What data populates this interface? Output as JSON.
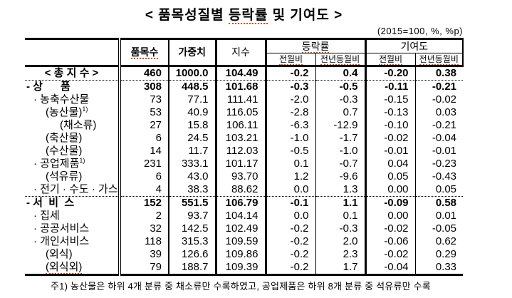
{
  "title_parts": {
    "pre": "< 품목성질별 ",
    "underlined": "등락률",
    "post": " 및 기여도 >"
  },
  "unit_note": "(2015=100, %, %p)",
  "colors": {
    "background": "#ffffff",
    "text": "#000000",
    "border": "#000000",
    "spellcheck_underline": "#c85119"
  },
  "table": {
    "col_headers": {
      "corner": "",
      "items": "품목수",
      "weight": "가중치",
      "index": "지수",
      "change_group": "등락률",
      "contrib_group": "기여도",
      "mom": "전월비",
      "yoy": "전년동월비"
    },
    "rows": [
      {
        "label": "< 총 지 수 >",
        "center": true,
        "bold": true,
        "sep_after": true,
        "indent": 0,
        "items": "460",
        "weight": "1000.0",
        "index": "104.49",
        "change_mom": "-0.2",
        "change_yoy": "0.4",
        "contrib_mom": "-0.20",
        "contrib_yoy": "0.38"
      },
      {
        "label": "- 상      품",
        "bold": true,
        "indent": 0,
        "items": "308",
        "weight": "448.5",
        "index": "101.68",
        "change_mom": "-0.3",
        "change_yoy": "-0.5",
        "contrib_mom": "-0.11",
        "contrib_yoy": "-0.21"
      },
      {
        "label": "· 농축수산물",
        "indent": 1,
        "items": "73",
        "weight": "77.1",
        "index": "111.41",
        "change_mom": "-2.0",
        "change_yoy": "-0.3",
        "contrib_mom": "-0.15",
        "contrib_yoy": "-0.02"
      },
      {
        "label": "(농산물)",
        "label_sup": "1)",
        "indent": 2,
        "items": "53",
        "weight": "40.9",
        "index": "116.05",
        "change_mom": "-2.8",
        "change_yoy": "0.7",
        "contrib_mom": "-0.13",
        "contrib_yoy": "0.03"
      },
      {
        "label": "(채소류)",
        "indent": 3,
        "items": "27",
        "weight": "15.8",
        "index": "106.11",
        "change_mom": "-6.3",
        "change_yoy": "-12.9",
        "contrib_mom": "-0.10",
        "contrib_yoy": "-0.21"
      },
      {
        "label": "(축산물)",
        "indent": 2,
        "items": "6",
        "weight": "24.5",
        "index": "103.21",
        "change_mom": "-1.0",
        "change_yoy": "-1.7",
        "contrib_mom": "-0.02",
        "contrib_yoy": "-0.04"
      },
      {
        "label": "(수산물)",
        "indent": 2,
        "items": "14",
        "weight": "11.7",
        "index": "112.03",
        "change_mom": "-0.5",
        "change_yoy": "-1.0",
        "contrib_mom": "-0.01",
        "contrib_yoy": "-0.01"
      },
      {
        "label": "· 공업제품",
        "label_sup": "1)",
        "indent": 1,
        "items": "231",
        "weight": "333.1",
        "index": "101.17",
        "change_mom": "0.1",
        "change_yoy": "-0.7",
        "contrib_mom": "0.04",
        "contrib_yoy": "-0.23"
      },
      {
        "label": "(석유류)",
        "indent": 2,
        "items": "6",
        "weight": "43.0",
        "index": "93.70",
        "change_mom": "1.2",
        "change_yoy": "-9.6",
        "contrib_mom": "0.05",
        "contrib_yoy": "-0.43"
      },
      {
        "label": "· 전기 · 수도 · 가스",
        "indent": 1,
        "sep_after": true,
        "items": "4",
        "weight": "38.3",
        "index": "88.62",
        "change_mom": "0.0",
        "change_yoy": "1.3",
        "contrib_mom": "0.00",
        "contrib_yoy": "0.05"
      },
      {
        "label": "- 서  비  스",
        "bold": true,
        "indent": 0,
        "items": "152",
        "weight": "551.5",
        "index": "106.79",
        "change_mom": "-0.1",
        "change_yoy": "1.1",
        "contrib_mom": "-0.09",
        "contrib_yoy": "0.58"
      },
      {
        "label": "· 집세",
        "indent": 1,
        "items": "2",
        "weight": "93.7",
        "index": "104.14",
        "change_mom": "0.0",
        "change_yoy": "0.1",
        "contrib_mom": "0.00",
        "contrib_yoy": "0.01"
      },
      {
        "label": "· 공공서비스",
        "indent": 1,
        "items": "32",
        "weight": "142.5",
        "index": "102.49",
        "change_mom": "-0.2",
        "change_yoy": "-0.3",
        "contrib_mom": "-0.02",
        "contrib_yoy": "-0.05"
      },
      {
        "label": "· 개인서비스",
        "indent": 1,
        "items": "118",
        "weight": "315.3",
        "index": "109.59",
        "change_mom": "-0.2",
        "change_yoy": "2.0",
        "contrib_mom": "-0.06",
        "contrib_yoy": "0.62"
      },
      {
        "label": "(외식)",
        "indent": 2,
        "items": "39",
        "weight": "126.6",
        "index": "109.86",
        "change_mom": "-0.2",
        "change_yoy": "2.3",
        "contrib_mom": "-0.02",
        "contrib_yoy": "0.29"
      },
      {
        "label": "(외식외)",
        "indent": 2,
        "sq": true,
        "items": "79",
        "weight": "188.7",
        "index": "109.39",
        "change_mom": "-0.2",
        "change_yoy": "1.7",
        "contrib_mom": "-0.04",
        "contrib_yoy": "0.33"
      }
    ]
  },
  "footnote": "주1) 농산물은 하위 4개 분류 중 채소류만 수록하였고, 공업제품은 하위 8개 분류 중 석유류만 수록"
}
